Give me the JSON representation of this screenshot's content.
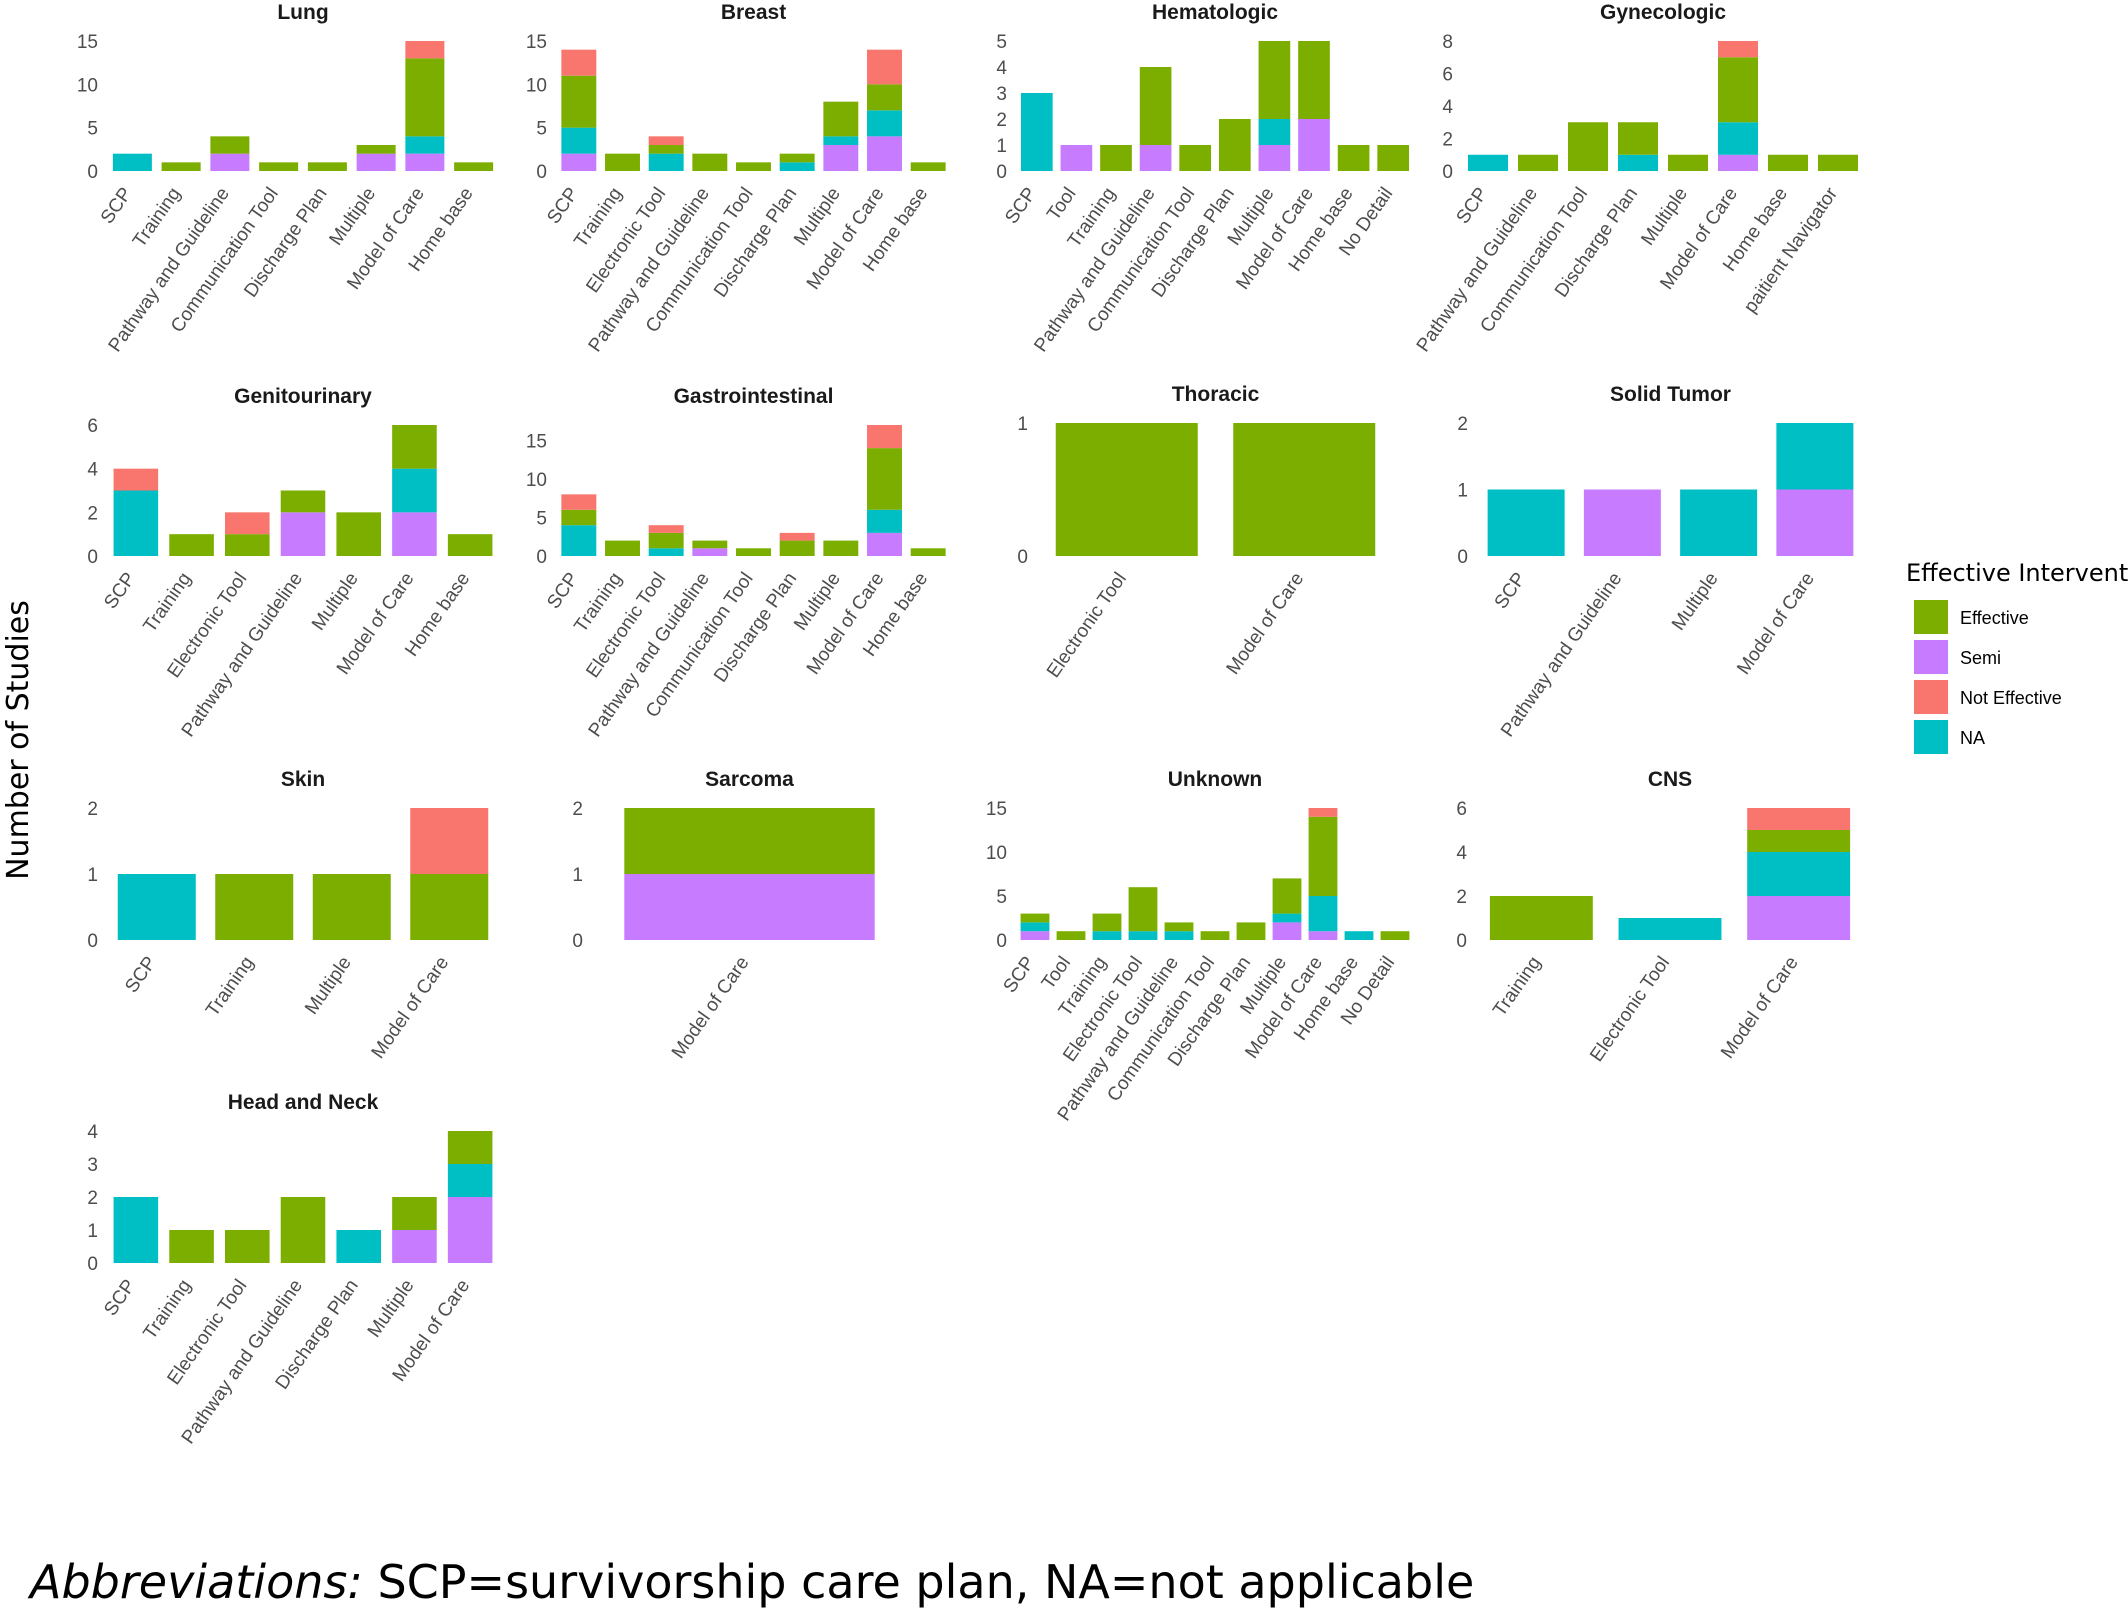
{
  "y_axis_label": "Number of Studies",
  "legend": {
    "title": "Effective Intervention",
    "entries": [
      {
        "key": "Effective",
        "label": "Effective",
        "color": "#7cae00"
      },
      {
        "key": "Semi",
        "label": "Semi",
        "color": "#c77cff"
      },
      {
        "key": "Not Effective",
        "label": "Not Effective",
        "color": "#f8766d"
      },
      {
        "key": "NA",
        "label": "NA",
        "color": "#00bfc4"
      }
    ]
  },
  "stack_order": [
    "Semi",
    "NA",
    "Effective",
    "Not Effective"
  ],
  "caption": {
    "lead": "Abbreviations:",
    "text": " SCP=survivorship care plan, NA=not applicable"
  },
  "chart_data": [
    {
      "type": "bar",
      "stacked": true,
      "title": "Lung",
      "ylim": [
        0,
        15
      ],
      "yticks": [
        0,
        5,
        10,
        15
      ],
      "categories": [
        "SCP",
        "Training",
        "Pathway and Guideline",
        "Communication Tool",
        "Discharge Plan",
        "Multiple",
        "Model of Care",
        "Home base"
      ],
      "series": [
        {
          "name": "Semi",
          "values": [
            0,
            0,
            2,
            0,
            0,
            2,
            2,
            0
          ]
        },
        {
          "name": "NA",
          "values": [
            2,
            0,
            0,
            0,
            0,
            0,
            2,
            0
          ]
        },
        {
          "name": "Effective",
          "values": [
            0,
            1,
            2,
            1,
            1,
            1,
            9,
            1
          ]
        },
        {
          "name": "Not Effective",
          "values": [
            0,
            0,
            0,
            0,
            0,
            0,
            2,
            0
          ]
        }
      ]
    },
    {
      "type": "bar",
      "stacked": true,
      "title": "Breast",
      "ylim": [
        0,
        15
      ],
      "yticks": [
        0,
        5,
        10,
        15
      ],
      "categories": [
        "SCP",
        "Training",
        "Electronic Tool",
        "Pathway and Guideline",
        "Communication Tool",
        "Discharge Plan",
        "Multiple",
        "Model of Care",
        "Home base"
      ],
      "series": [
        {
          "name": "Semi",
          "values": [
            2,
            0,
            0,
            0,
            0,
            0,
            3,
            4,
            0
          ]
        },
        {
          "name": "NA",
          "values": [
            3,
            0,
            2,
            0,
            0,
            1,
            1,
            3,
            0
          ]
        },
        {
          "name": "Effective",
          "values": [
            6,
            2,
            1,
            2,
            1,
            1,
            4,
            3,
            1
          ]
        },
        {
          "name": "Not Effective",
          "values": [
            3,
            0,
            1,
            0,
            0,
            0,
            0,
            4,
            0
          ]
        }
      ]
    },
    {
      "type": "bar",
      "stacked": true,
      "title": "Hematologic",
      "ylim": [
        0,
        5
      ],
      "yticks": [
        0,
        1,
        2,
        3,
        4,
        5
      ],
      "categories": [
        "SCP",
        "Tool",
        "Training",
        "Pathway and Guideline",
        "Communication Tool",
        "Discharge Plan",
        "Multiple",
        "Model of Care",
        "Home base",
        "No Detail"
      ],
      "series": [
        {
          "name": "Semi",
          "values": [
            0,
            1,
            0,
            1,
            0,
            0,
            1,
            2,
            0,
            0
          ]
        },
        {
          "name": "NA",
          "values": [
            3,
            0,
            0,
            0,
            0,
            0,
            1,
            0,
            0,
            0
          ]
        },
        {
          "name": "Effective",
          "values": [
            0,
            0,
            1,
            3,
            1,
            2,
            3,
            3,
            1,
            1
          ]
        },
        {
          "name": "Not Effective",
          "values": [
            0,
            0,
            0,
            0,
            0,
            0,
            0,
            0,
            0,
            0
          ]
        }
      ]
    },
    {
      "type": "bar",
      "stacked": true,
      "title": "Gynecologic",
      "ylim": [
        0,
        8
      ],
      "yticks": [
        0,
        2,
        4,
        6,
        8
      ],
      "categories": [
        "SCP",
        "Pathway and Guideline",
        "Communication Tool",
        "Discharge Plan",
        "Multiple",
        "Model of Care",
        "Home base",
        "paitient Navigator"
      ],
      "series": [
        {
          "name": "Semi",
          "values": [
            0,
            0,
            0,
            0,
            0,
            1,
            0,
            0
          ]
        },
        {
          "name": "NA",
          "values": [
            1,
            0,
            0,
            1,
            0,
            2,
            0,
            0
          ]
        },
        {
          "name": "Effective",
          "values": [
            0,
            1,
            3,
            2,
            1,
            4,
            1,
            1
          ]
        },
        {
          "name": "Not Effective",
          "values": [
            0,
            0,
            0,
            0,
            0,
            1,
            0,
            0
          ]
        }
      ]
    },
    {
      "type": "bar",
      "stacked": true,
      "title": "Genitourinary",
      "ylim": [
        0,
        6
      ],
      "yticks": [
        0,
        2,
        4,
        6
      ],
      "categories": [
        "SCP",
        "Training",
        "Electronic Tool",
        "Pathway and Guideline",
        "Multiple",
        "Model of Care",
        "Home base"
      ],
      "series": [
        {
          "name": "Semi",
          "values": [
            0,
            0,
            0,
            2,
            0,
            2,
            0
          ]
        },
        {
          "name": "NA",
          "values": [
            3,
            0,
            0,
            0,
            0,
            2,
            0
          ]
        },
        {
          "name": "Effective",
          "values": [
            0,
            1,
            1,
            1,
            2,
            2,
            1
          ]
        },
        {
          "name": "Not Effective",
          "values": [
            1,
            0,
            1,
            0,
            0,
            0,
            0
          ]
        }
      ]
    },
    {
      "type": "bar",
      "stacked": true,
      "title": "Gastrointestinal",
      "ylim": [
        0,
        17
      ],
      "yticks": [
        0,
        5,
        10,
        15
      ],
      "categories": [
        "SCP",
        "Training",
        "Electronic Tool",
        "Pathway and Guideline",
        "Communication Tool",
        "Discharge Plan",
        "Multiple",
        "Model of Care",
        "Home base"
      ],
      "series": [
        {
          "name": "Semi",
          "values": [
            0,
            0,
            0,
            1,
            0,
            0,
            0,
            3,
            0
          ]
        },
        {
          "name": "NA",
          "values": [
            4,
            0,
            1,
            0,
            0,
            0,
            0,
            3,
            0
          ]
        },
        {
          "name": "Effective",
          "values": [
            2,
            2,
            2,
            1,
            1,
            2,
            2,
            8,
            1
          ]
        },
        {
          "name": "Not Effective",
          "values": [
            2,
            0,
            1,
            0,
            0,
            1,
            0,
            3,
            0
          ]
        }
      ]
    },
    {
      "type": "bar",
      "stacked": true,
      "title": "Thoracic",
      "ylim": [
        0,
        1
      ],
      "yticks": [
        0,
        1
      ],
      "categories": [
        "Electronic Tool",
        "Model of Care"
      ],
      "series": [
        {
          "name": "Semi",
          "values": [
            0,
            0
          ]
        },
        {
          "name": "NA",
          "values": [
            0,
            0
          ]
        },
        {
          "name": "Effective",
          "values": [
            1,
            1
          ]
        },
        {
          "name": "Not Effective",
          "values": [
            0,
            0
          ]
        }
      ]
    },
    {
      "type": "bar",
      "stacked": true,
      "title": "Solid Tumor",
      "ylim": [
        0,
        2
      ],
      "yticks": [
        0,
        1,
        2
      ],
      "categories": [
        "SCP",
        "Pathway and Guideline",
        "Multiple",
        "Model of Care"
      ],
      "series": [
        {
          "name": "Semi",
          "values": [
            0,
            1,
            0,
            1
          ]
        },
        {
          "name": "NA",
          "values": [
            1,
            0,
            1,
            1
          ]
        },
        {
          "name": "Effective",
          "values": [
            0,
            0,
            0,
            0
          ]
        },
        {
          "name": "Not Effective",
          "values": [
            0,
            0,
            0,
            0
          ]
        }
      ]
    },
    {
      "type": "bar",
      "stacked": true,
      "title": "Skin",
      "ylim": [
        0,
        2
      ],
      "yticks": [
        0,
        1,
        2
      ],
      "categories": [
        "SCP",
        "Training",
        "Multiple",
        "Model of Care"
      ],
      "series": [
        {
          "name": "Semi",
          "values": [
            0,
            0,
            0,
            0
          ]
        },
        {
          "name": "NA",
          "values": [
            1,
            0,
            0,
            0
          ]
        },
        {
          "name": "Effective",
          "values": [
            0,
            1,
            1,
            1
          ]
        },
        {
          "name": "Not Effective",
          "values": [
            0,
            0,
            0,
            1
          ]
        }
      ]
    },
    {
      "type": "bar",
      "stacked": true,
      "title": "Sarcoma",
      "ylim": [
        0,
        2
      ],
      "yticks": [
        0,
        1,
        2
      ],
      "categories": [
        "Model of Care"
      ],
      "series": [
        {
          "name": "Semi",
          "values": [
            1
          ]
        },
        {
          "name": "NA",
          "values": [
            0
          ]
        },
        {
          "name": "Effective",
          "values": [
            1
          ]
        },
        {
          "name": "Not Effective",
          "values": [
            0
          ]
        }
      ]
    },
    {
      "type": "bar",
      "stacked": true,
      "title": "Unknown",
      "ylim": [
        0,
        15
      ],
      "yticks": [
        0,
        5,
        10,
        15
      ],
      "categories": [
        "SCP",
        "Tool",
        "Training",
        "Electronic Tool",
        "Pathway and Guideline",
        "Communication Tool",
        "Discharge Plan",
        "Multiple",
        "Model of Care",
        "Home base",
        "No Detail"
      ],
      "series": [
        {
          "name": "Semi",
          "values": [
            1,
            0,
            0,
            0,
            0,
            0,
            0,
            2,
            1,
            0,
            0
          ]
        },
        {
          "name": "NA",
          "values": [
            1,
            0,
            1,
            1,
            1,
            0,
            0,
            1,
            4,
            1,
            0
          ]
        },
        {
          "name": "Effective",
          "values": [
            1,
            1,
            2,
            5,
            1,
            1,
            2,
            4,
            9,
            0,
            1
          ]
        },
        {
          "name": "Not Effective",
          "values": [
            0,
            0,
            0,
            0,
            0,
            0,
            0,
            0,
            1,
            0,
            0
          ]
        }
      ]
    },
    {
      "type": "bar",
      "stacked": true,
      "title": "CNS",
      "ylim": [
        0,
        6
      ],
      "yticks": [
        0,
        2,
        4,
        6
      ],
      "categories": [
        "Training",
        "Electronic Tool",
        "Model of Care"
      ],
      "series": [
        {
          "name": "Semi",
          "values": [
            0,
            0,
            2
          ]
        },
        {
          "name": "NA",
          "values": [
            0,
            1,
            2
          ]
        },
        {
          "name": "Effective",
          "values": [
            2,
            0,
            1
          ]
        },
        {
          "name": "Not Effective",
          "values": [
            0,
            0,
            1
          ]
        }
      ]
    },
    {
      "type": "bar",
      "stacked": true,
      "title": "Head and Neck",
      "ylim": [
        0,
        4
      ],
      "yticks": [
        0,
        1,
        2,
        3,
        4
      ],
      "categories": [
        "SCP",
        "Training",
        "Electronic Tool",
        "Pathway and Guideline",
        "Discharge Plan",
        "Multiple",
        "Model of Care"
      ],
      "series": [
        {
          "name": "Semi",
          "values": [
            0,
            0,
            0,
            0,
            0,
            1,
            2
          ]
        },
        {
          "name": "NA",
          "values": [
            2,
            0,
            0,
            0,
            1,
            0,
            1
          ]
        },
        {
          "name": "Effective",
          "values": [
            0,
            1,
            1,
            2,
            0,
            1,
            1
          ]
        },
        {
          "name": "Not Effective",
          "values": [
            0,
            0,
            0,
            0,
            0,
            0,
            0
          ]
        }
      ]
    }
  ]
}
